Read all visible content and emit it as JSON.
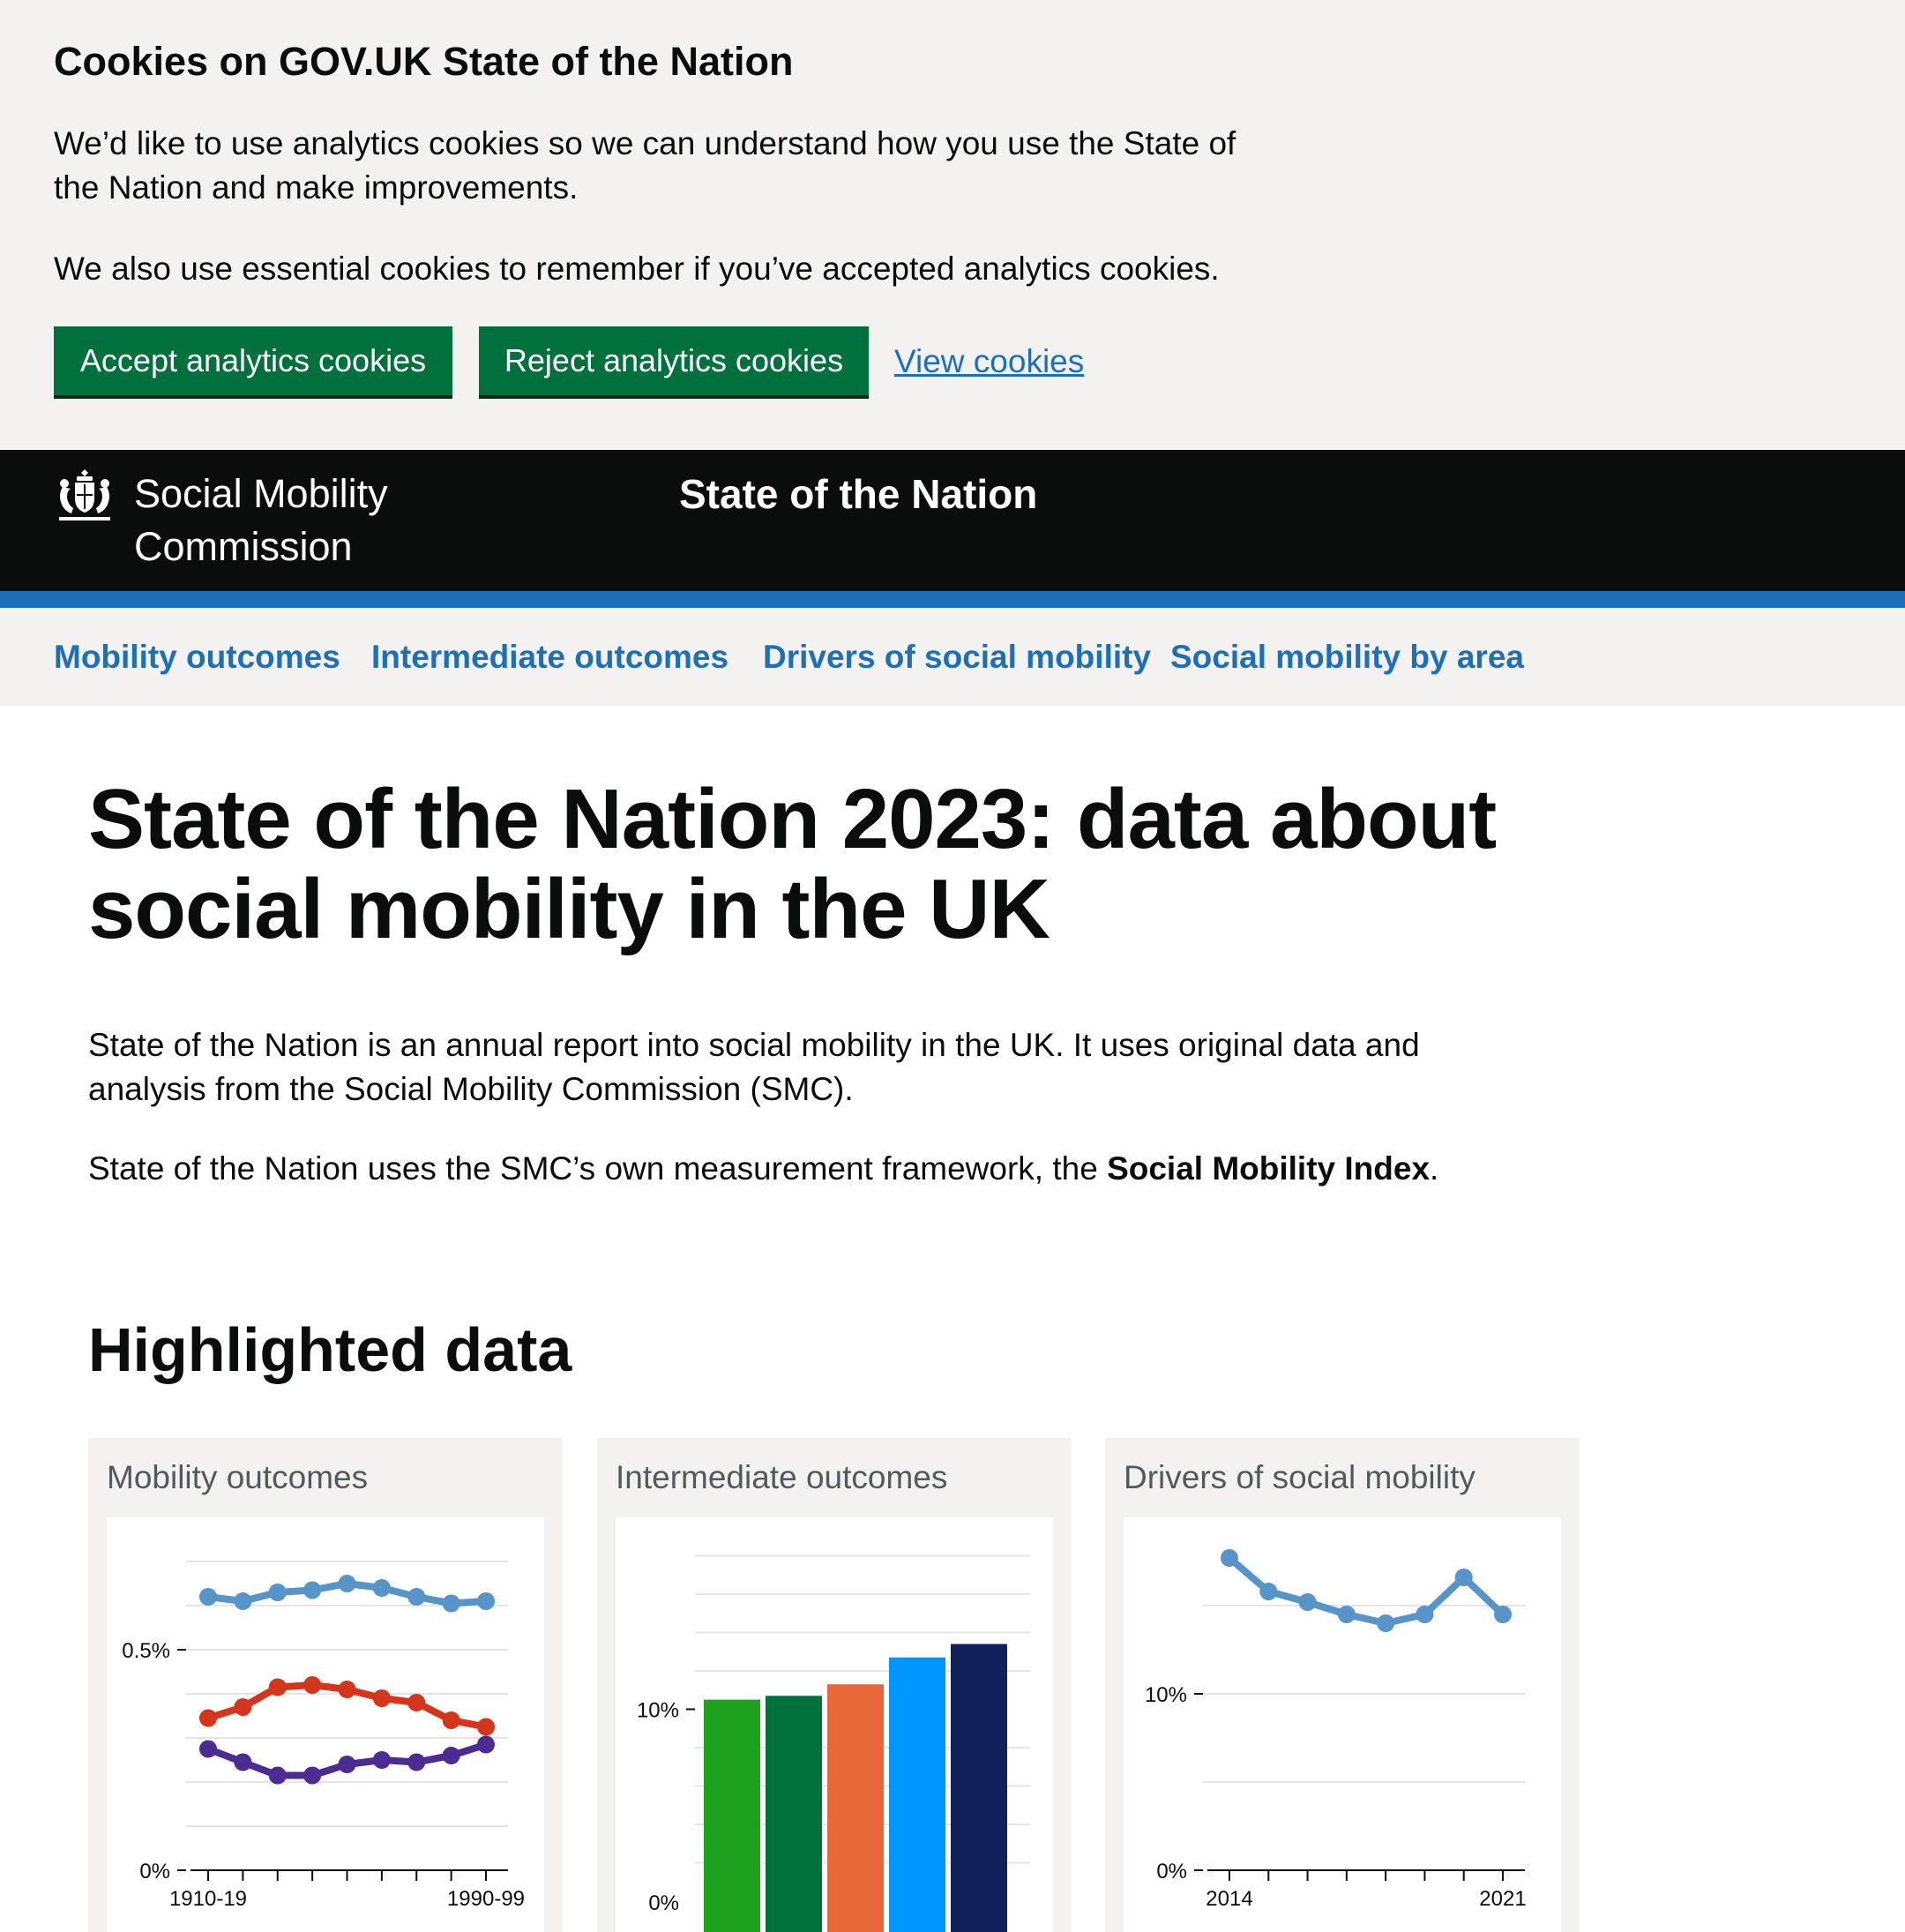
{
  "cookie_banner": {
    "title": "Cookies on GOV.UK State of the Nation",
    "paragraph_1": "We’d like to use analytics cookies so we can understand how you use the State of the Nation and make improvements.",
    "paragraph_2": "We also use essential cookies to remember if you’ve accepted analytics cookies.",
    "accept_label": "Accept analytics cookies",
    "reject_label": "Reject analytics cookies",
    "view_label": "View cookies"
  },
  "header": {
    "org_name": "Social Mobility Commission",
    "service_name": "State of the Nation",
    "crest_icon": "royal-coat-of-arms-icon"
  },
  "nav": {
    "items": [
      {
        "label": "Mobility outcomes"
      },
      {
        "label": "Intermediate outcomes"
      },
      {
        "label": "Drivers of social mobility"
      },
      {
        "label": "Social mobility by area"
      }
    ]
  },
  "main": {
    "title": "State of the Nation 2023: data about social mobility in the UK",
    "intro_1": "State of the Nation is an annual report into social mobility in the UK. It uses original data and analysis from the Social Mobility Commission (SMC).",
    "intro_2_prefix": "State of the Nation uses the SMC’s own measurement framework, the ",
    "intro_2_bold": "Social Mobility Index",
    "intro_2_suffix": ".",
    "section_title": "Highlighted data"
  },
  "cards": [
    {
      "title": "Mobility outcomes"
    },
    {
      "title": "Intermediate outcomes"
    },
    {
      "title": "Drivers of social mobility"
    }
  ],
  "colors": {
    "accent_blue": "#1d70b8",
    "button_green": "#00703c",
    "header_black": "#0b0c0c",
    "banner_grey": "#f3f2f1"
  },
  "chart_data": [
    {
      "type": "line",
      "x_tick_labels": [
        "1910-19",
        "1990-99"
      ],
      "y_tick_labels": [
        "0%",
        "0.5%"
      ],
      "ylim": [
        0,
        0.8
      ],
      "x": [
        0,
        1,
        2,
        3,
        4,
        5,
        6,
        7,
        8
      ],
      "series": [
        {
          "color": "#5694ca",
          "values": [
            0.62,
            0.61,
            0.63,
            0.635,
            0.65,
            0.64,
            0.62,
            0.605,
            0.61
          ]
        },
        {
          "color": "#d4351c",
          "values": [
            0.345,
            0.37,
            0.415,
            0.42,
            0.41,
            0.39,
            0.38,
            0.34,
            0.325
          ]
        },
        {
          "color": "#4c2c92",
          "values": [
            0.275,
            0.245,
            0.215,
            0.215,
            0.24,
            0.25,
            0.245,
            0.26,
            0.285
          ]
        }
      ]
    },
    {
      "type": "bar",
      "y_tick_labels": [
        "0%",
        "10%"
      ],
      "ylim": [
        0,
        20
      ],
      "values": [
        10.5,
        10.7,
        11.3,
        12.7,
        13.4
      ],
      "colors": [
        "#1ea11e",
        "#00703c",
        "#e8683a",
        "#0096ff",
        "#12215a"
      ]
    },
    {
      "type": "line",
      "x_tick_labels": [
        "2014",
        "2021"
      ],
      "y_tick_labels": [
        "0%",
        "10%"
      ],
      "ylim": [
        0,
        20
      ],
      "x": [
        2014,
        2015,
        2016,
        2017,
        2018,
        2019,
        2020,
        2021
      ],
      "series": [
        {
          "color": "#5694ca",
          "values": [
            17.7,
            15.8,
            15.2,
            14.5,
            14.0,
            14.5,
            16.6,
            14.5
          ]
        }
      ]
    }
  ]
}
